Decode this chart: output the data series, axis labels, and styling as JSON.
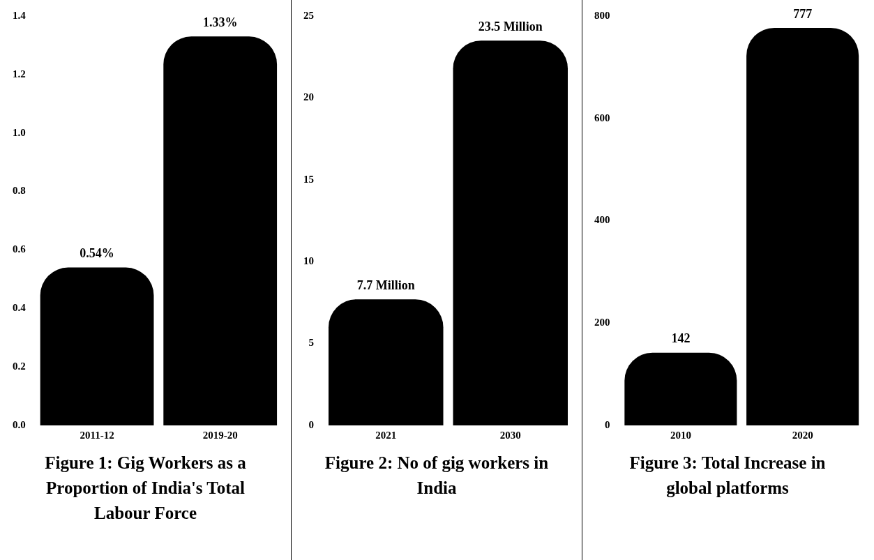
{
  "chart_data": [
    {
      "type": "bar",
      "title": "Figure 1: Gig Workers as a Proportion of India's Total Labour Force",
      "categories": [
        "2011-12",
        "2019-20"
      ],
      "values": [
        0.54,
        1.33
      ],
      "color": "#000000",
      "value_labels": [
        "0.54%",
        "1.33%"
      ],
      "ylim": [
        0,
        1.4
      ],
      "yticks": [
        {
          "value": 0,
          "label": "0.0"
        },
        0.2,
        0.4,
        0.6,
        0.8,
        {
          "value": 1,
          "label": "1.0"
        },
        1.2,
        1.4
      ]
    },
    {
      "type": "bar",
      "title": "Figure 2:  No of gig workers in India",
      "categories": [
        "2021",
        "2030"
      ],
      "values": [
        7.7,
        23.5
      ],
      "color": "#000000",
      "value_labels": [
        "7.7 Million",
        "23.5 Million"
      ],
      "ylim": [
        0,
        25
      ],
      "yticks": [
        0,
        5,
        10,
        15,
        20,
        25
      ]
    },
    {
      "type": "bar",
      "title": "Figure 3: Total Increase in global platforms",
      "categories": [
        "2010",
        "2020"
      ],
      "values": [
        142,
        777
      ],
      "color": "#000000",
      "data_labels": true,
      "ylim": [
        0,
        800
      ],
      "yticks": [
        0,
        200,
        400,
        600,
        800
      ]
    }
  ]
}
